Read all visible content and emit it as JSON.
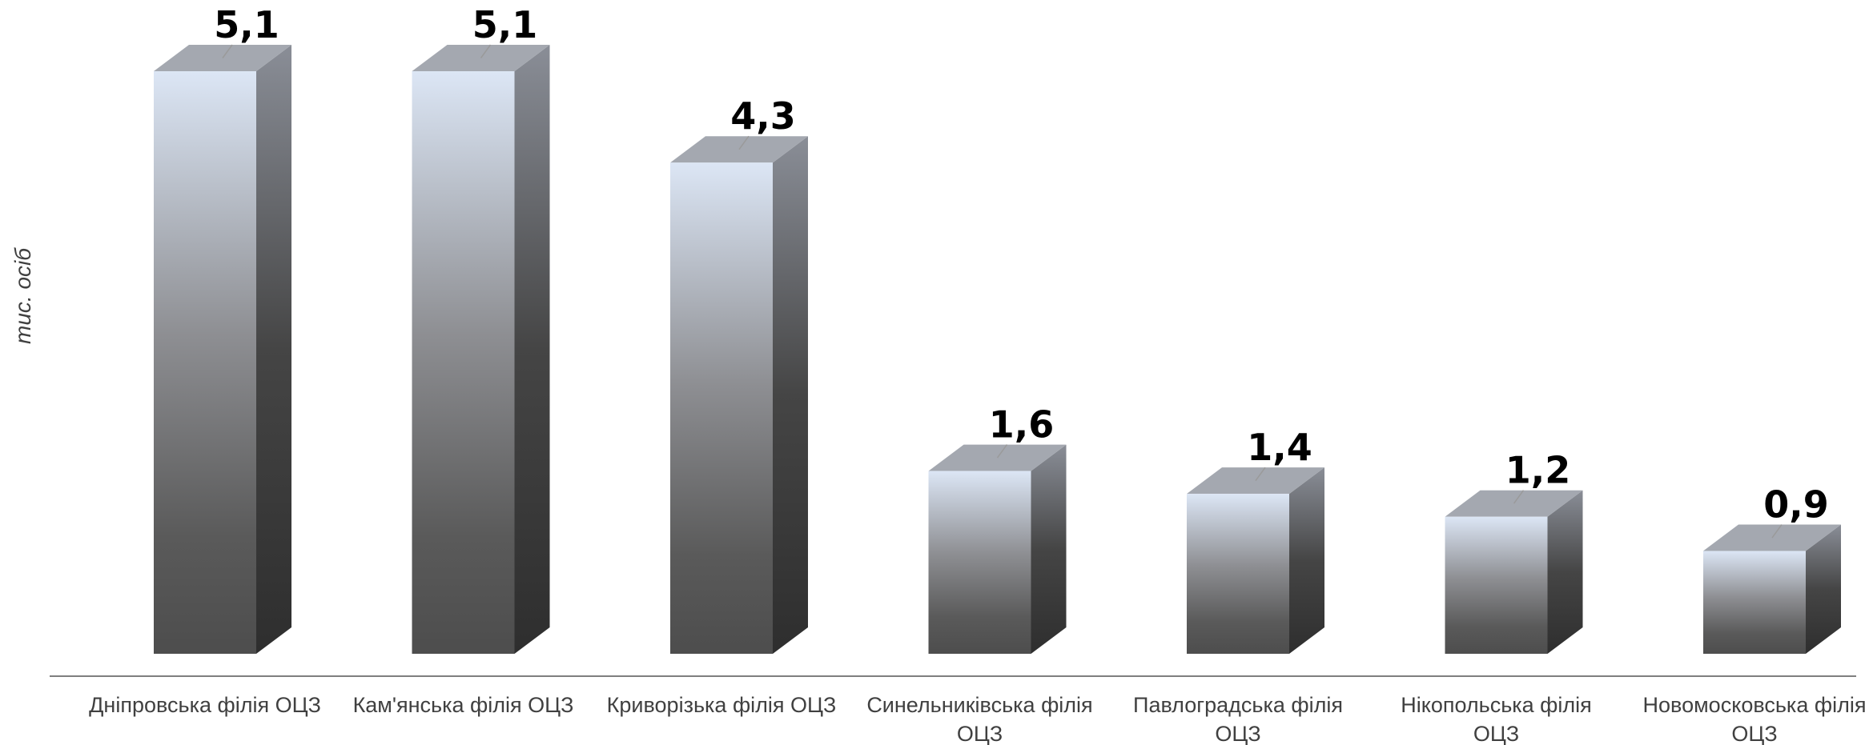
{
  "chart_data": {
    "type": "bar",
    "style": "3d-column",
    "ylabel": "тис. осіб",
    "xlabel": "",
    "ylim": [
      0,
      5.1
    ],
    "grid": false,
    "legend": "none",
    "categories": [
      [
        "Дніпровська філія ОЦЗ"
      ],
      [
        "Кам'янська філія ОЦЗ"
      ],
      [
        "Криворізька філія ОЦЗ"
      ],
      [
        "Синельниківська філія",
        "ОЦЗ"
      ],
      [
        "Павлоградська філія",
        "ОЦЗ"
      ],
      [
        "Нікопольська філія",
        "ОЦЗ"
      ],
      [
        "Новомосковська філія",
        "ОЦЗ"
      ]
    ],
    "values": [
      5.1,
      5.1,
      4.3,
      1.6,
      1.4,
      1.2,
      0.9
    ],
    "value_labels": [
      "5,1",
      "5,1",
      "4,3",
      "1,6",
      "1,4",
      "1,2",
      "0,9"
    ],
    "colors": {
      "front_top": "#dce6f5",
      "front_mid": "#8e8f93",
      "front_bottom": "#4d4d4d",
      "side_top": "#8a8e97",
      "side_bottom": "#2e2e2e",
      "top_face": "#a4a8b0",
      "axis": "#7f7f7f"
    }
  }
}
